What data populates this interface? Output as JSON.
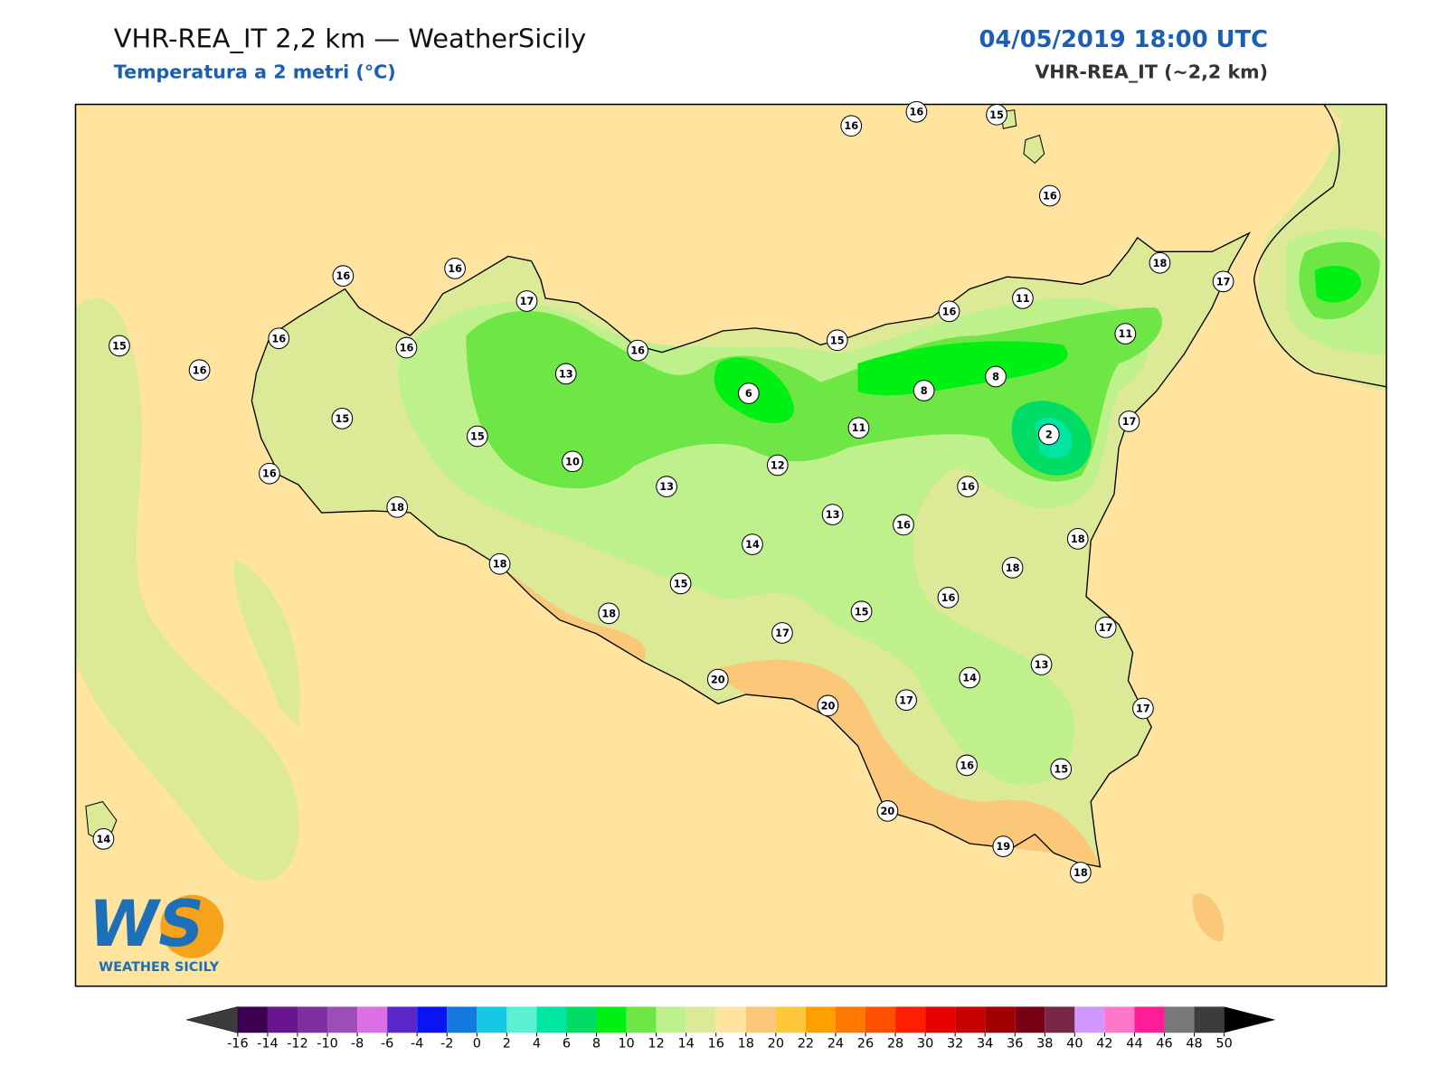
{
  "header": {
    "title": "VHR-REA_IT 2,2 km — WeatherSicily",
    "subtitle": "Temperatura a 2 metri (°C)",
    "date": "04/05/2019 18:00 UTC",
    "model": "VHR-REA_IT (~2,2 km)"
  },
  "stations": [
    16,
    16,
    15,
    16,
    18,
    17,
    16,
    16,
    17,
    15,
    16,
    16,
    16,
    16,
    15,
    16,
    11,
    11,
    13,
    6,
    8,
    8,
    2,
    17,
    15,
    15,
    10,
    11,
    12,
    16,
    13,
    16,
    18,
    13,
    16,
    18,
    14,
    18,
    18,
    15,
    16,
    15,
    18,
    17,
    17,
    13,
    20,
    14,
    17,
    20,
    17,
    16,
    15,
    20,
    19,
    18,
    14
  ],
  "colorbar": {
    "ticks": [
      -16,
      -14,
      -12,
      -10,
      -8,
      -6,
      -4,
      -2,
      0,
      2,
      4,
      6,
      8,
      10,
      12,
      14,
      16,
      18,
      20,
      22,
      24,
      26,
      28,
      30,
      32,
      34,
      36,
      38,
      40,
      42,
      44,
      46,
      48,
      50
    ],
    "colors": [
      "#3d0050",
      "#6a1590",
      "#7e2fa0",
      "#9c4db8",
      "#dc6ee6",
      "#5a28c8",
      "#0a14f0",
      "#1478dc",
      "#14c8e6",
      "#5af0d2",
      "#00e6a0",
      "#00dc64",
      "#00f014",
      "#6ee646",
      "#bef08c",
      "#dce996",
      "#ffe4a0",
      "#fac878",
      "#ffc83c",
      "#ffa000",
      "#ff7800",
      "#ff5000",
      "#ff1e00",
      "#e60000",
      "#c80000",
      "#a00000",
      "#780014",
      "#782846",
      "#d296ff",
      "#ff78c8",
      "#ff1e96",
      "#787878",
      "#3c3c3c"
    ],
    "under_color": "#3c3c3c",
    "over_color": "#000000"
  },
  "logo": {
    "mark": "WS",
    "name": "WEATHER SICILY"
  }
}
